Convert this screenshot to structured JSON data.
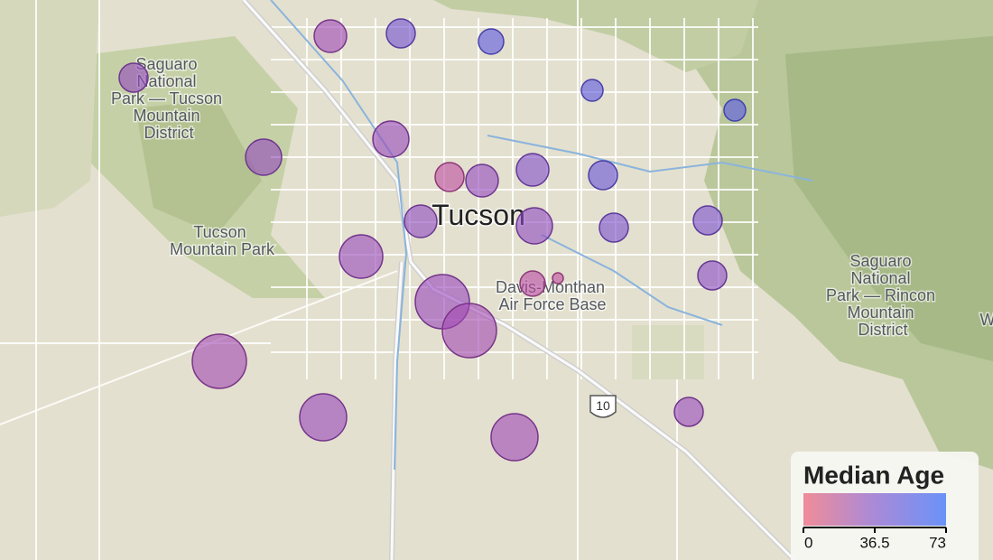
{
  "map": {
    "place_labels": {
      "saguaro_west": [
        "Saguaro",
        "National",
        "Park — Tucson",
        "Mountain",
        "District"
      ],
      "tucson_mountain_park": [
        "Tucson",
        "Mountain Park"
      ],
      "city": "Tucson",
      "air_base": [
        "Davis-Monthan",
        "Air Force Base"
      ],
      "saguaro_east": [
        "Saguaro",
        "National",
        "Park — Rincon",
        "Mountain",
        "District"
      ],
      "interstate": "10",
      "edge": "W"
    },
    "legend": {
      "title": "Median Age",
      "ticks": [
        0,
        36.5,
        73
      ]
    },
    "bubbles": [
      {
        "median_age": 40,
        "size": 64
      },
      {
        "median_age": 35,
        "size": 81
      },
      {
        "median_age": 55,
        "size": 64
      },
      {
        "median_age": 65,
        "size": 49
      },
      {
        "median_age": 65,
        "size": 36
      },
      {
        "median_age": 68,
        "size": 36
      },
      {
        "median_age": 40,
        "size": 100
      },
      {
        "median_age": 38,
        "size": 100
      },
      {
        "median_age": 20,
        "size": 64
      },
      {
        "median_age": 40,
        "size": 81
      },
      {
        "median_age": 48,
        "size": 81
      },
      {
        "median_age": 60,
        "size": 64
      },
      {
        "median_age": 42,
        "size": 81
      },
      {
        "median_age": 42,
        "size": 100
      },
      {
        "median_age": 52,
        "size": 64
      },
      {
        "median_age": 52,
        "size": 64
      },
      {
        "median_age": 38,
        "size": 144
      },
      {
        "median_age": 22,
        "size": 49
      },
      {
        "median_age": 20,
        "size": 9
      },
      {
        "median_age": 45,
        "size": 64
      },
      {
        "median_age": 37,
        "size": 225
      },
      {
        "median_age": 33,
        "size": 225
      },
      {
        "median_age": 33,
        "size": 225
      },
      {
        "median_age": 37,
        "size": 169
      },
      {
        "median_age": 35,
        "size": 169
      },
      {
        "median_age": 38,
        "size": 64
      }
    ]
  }
}
